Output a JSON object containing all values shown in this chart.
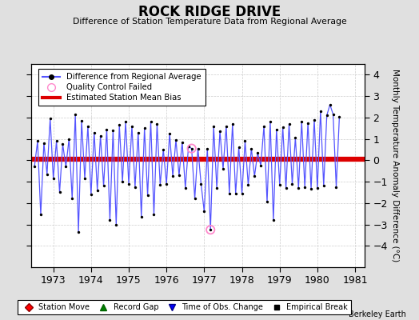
{
  "title": "ROCK RIDGE DRIVE",
  "subtitle": "Difference of Station Temperature Data from Regional Average",
  "ylabel": "Monthly Temperature Anomaly Difference (°C)",
  "xlim": [
    1972.42,
    1981.25
  ],
  "ylim": [
    -5,
    4.5
  ],
  "yticks": [
    -4,
    -3,
    -2,
    -1,
    0,
    1,
    2,
    3,
    4
  ],
  "xticks": [
    1973,
    1974,
    1975,
    1976,
    1977,
    1978,
    1979,
    1980,
    1981
  ],
  "bias_value": 0.05,
  "line_color": "#5555ff",
  "bias_color": "#dd0000",
  "background_color": "#e0e0e0",
  "plot_bg_color": "#ffffff",
  "watermark": "Berkeley Earth",
  "monthly_data": [
    -0.3,
    0.9,
    -2.55,
    0.8,
    -0.65,
    1.95,
    -0.85,
    0.9,
    -1.5,
    0.75,
    -0.3,
    1.0,
    -1.8,
    2.15,
    -3.35,
    1.85,
    -0.85,
    1.6,
    -1.6,
    1.3,
    -1.4,
    1.15,
    -1.2,
    1.45,
    -2.8,
    1.4,
    -3.0,
    1.65,
    -1.0,
    1.8,
    -1.1,
    1.6,
    -1.25,
    1.3,
    -2.65,
    1.5,
    -1.65,
    1.8,
    -2.55,
    1.7,
    -1.15,
    0.5,
    -1.1,
    1.25,
    -0.75,
    0.95,
    -0.7,
    0.85,
    -1.3,
    0.65,
    0.55,
    -1.8,
    0.55,
    -1.1,
    -2.4,
    0.55,
    -3.25,
    1.6,
    -1.3,
    1.35,
    -0.4,
    1.6,
    -1.55,
    1.7,
    -1.55,
    0.6,
    -1.55,
    0.9,
    -1.15,
    0.55,
    -0.75,
    0.35,
    -0.25,
    1.6,
    -1.95,
    1.8,
    -2.8,
    1.45,
    -1.15,
    1.55,
    -1.3,
    1.7,
    -1.1,
    1.05,
    -1.3,
    1.8,
    -1.25,
    1.75,
    -1.35,
    1.9,
    -1.3,
    2.3,
    -1.2,
    2.1,
    2.6,
    2.15,
    -1.25,
    2.05
  ],
  "qc_failed_indices": [
    50,
    56
  ],
  "start_year": 1972,
  "start_month": 7
}
